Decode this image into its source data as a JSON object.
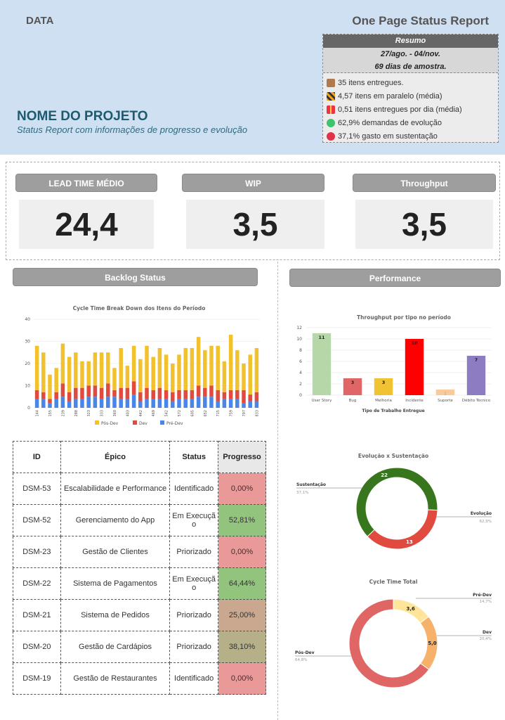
{
  "header": {
    "data_label": "DATA",
    "report_title": "One Page Status Report",
    "project_name": "NOME DO PROJETO",
    "project_subtitle": "Status Report com informações de progresso e evolução"
  },
  "resumo": {
    "title": "Resumo",
    "period": "27/ago. - 04/nov.",
    "sample": "69 dias de amostra.",
    "items": [
      {
        "icon": "package-icon",
        "text": "35 itens entregues."
      },
      {
        "icon": "barrier-icon",
        "text": "4,57 itens em paralelo (média)"
      },
      {
        "icon": "gift-icon",
        "text": "0,51 itens entregues por dia (média)"
      },
      {
        "icon": "green-circle-icon",
        "text": "62,9% demandas de evolução"
      },
      {
        "icon": "red-circle-icon",
        "text": "37,1% gasto em sustentação"
      }
    ]
  },
  "kpis": [
    {
      "label": "LEAD TIME MÉDIO",
      "value": "24,4"
    },
    {
      "label": "WIP",
      "value": "3,5"
    },
    {
      "label": "Throughput",
      "value": "3,5"
    }
  ],
  "sections": {
    "backlog": "Backlog Status",
    "performance": "Performance"
  },
  "colors": {
    "pos_dev": "#f2c12e",
    "dev": "#e04a3f",
    "pre_dev": "#4a86e8",
    "evolucao": "#38761d",
    "sustentacao": "#e04a3f",
    "prog_red": "#ea9999",
    "prog_green": "#93c47d",
    "prog_tan": "#c9a88f",
    "prog_olive": "#b5b087"
  },
  "chart_data": [
    {
      "type": "bar",
      "stacked": true,
      "title": "Cycle Time Break Down dos Itens do Período",
      "categories": [
        "144",
        "",
        "155",
        "",
        "239",
        "",
        "288",
        "",
        "323",
        "",
        "333",
        "",
        "360",
        "",
        "403",
        "",
        "442",
        "",
        "469",
        "",
        "542",
        "",
        "572",
        "",
        "605",
        "",
        "652",
        "",
        "715",
        "",
        "759",
        "",
        "797",
        "",
        "833"
      ],
      "series": [
        {
          "name": "Pós-Dev",
          "values": [
            20,
            18,
            11,
            11,
            18,
            16,
            16,
            12,
            11,
            15,
            16,
            14,
            10,
            18,
            10,
            16,
            15,
            19,
            15,
            18,
            16,
            13,
            16,
            19,
            19,
            22,
            17,
            18,
            20,
            14,
            25,
            18,
            12,
            18,
            20
          ]
        },
        {
          "name": "Dev",
          "values": [
            4,
            3,
            2,
            3,
            6,
            4,
            5,
            5,
            5,
            5,
            5,
            6,
            3,
            5,
            5,
            6,
            4,
            5,
            4,
            5,
            4,
            4,
            4,
            4,
            4,
            5,
            4,
            5,
            5,
            3,
            4,
            4,
            6,
            3,
            4
          ]
        },
        {
          "name": "Pré-Dev",
          "values": [
            4,
            4,
            2,
            4,
            5,
            3,
            4,
            4,
            5,
            5,
            4,
            5,
            5,
            4,
            4,
            6,
            3,
            4,
            4,
            4,
            4,
            3,
            4,
            4,
            4,
            5,
            5,
            5,
            3,
            4,
            4,
            4,
            2,
            3,
            3
          ]
        }
      ],
      "ylim": [
        0,
        40
      ],
      "yticks": [
        0,
        10,
        20,
        30,
        40
      ],
      "legend": "bottom"
    },
    {
      "type": "bar",
      "title": "Throughput por tipo no período",
      "xlabel": "Tipo de Trabalho Entregue",
      "categories": [
        "User Story",
        "Bug",
        "Melhoria",
        "Incidente",
        "Suporte",
        "Débito Técnico"
      ],
      "values": [
        11,
        3,
        3,
        10,
        1,
        7
      ],
      "colors": [
        "#b6d7a8",
        "#e06666",
        "#f1c232",
        "#ff0000",
        "#f9cb9c",
        "#8e7cc3"
      ],
      "ylim": [
        0,
        12
      ],
      "yticks": [
        0,
        2,
        4,
        6,
        8,
        10,
        12
      ]
    },
    {
      "type": "pie",
      "title": "Evolução x Sustentação",
      "slices": [
        {
          "label": "Evolução",
          "value": 22,
          "pct": "62,9%",
          "color": "#38761d"
        },
        {
          "label": "Sustentação",
          "value": 13,
          "pct": "37,1%",
          "color": "#e04a3f"
        }
      ]
    },
    {
      "type": "pie",
      "title": "Cycle Time Total",
      "slices": [
        {
          "label": "Pré-Dev",
          "value": 3.6,
          "display": "3,6",
          "pct": "14,7%",
          "color": "#ffe599"
        },
        {
          "label": "Dev",
          "value": 5.0,
          "display": "5,0",
          "pct": "20,4%",
          "color": "#f6b26b"
        },
        {
          "label": "Pós-Dev",
          "value": 15.9,
          "display": "",
          "pct": "64,8%",
          "color": "#e06666"
        }
      ]
    }
  ],
  "table": {
    "headers": [
      "ID",
      "Épico",
      "Status",
      "Progresso"
    ],
    "rows": [
      {
        "id": "DSM-53",
        "epico": "Escalabilidade e Performance",
        "status": "Identificado",
        "progresso": "0,00%",
        "color": "#ea9999"
      },
      {
        "id": "DSM-52",
        "epico": "Gerenciamento do App",
        "status": "Em Execução",
        "progresso": "52,81%",
        "color": "#93c47d"
      },
      {
        "id": "DSM-23",
        "epico": "Gestão de Clientes",
        "status": "Priorizado",
        "progresso": "0,00%",
        "color": "#ea9999"
      },
      {
        "id": "DSM-22",
        "epico": "Sistema de Pagamentos",
        "status": "Em Execução",
        "progresso": "64,44%",
        "color": "#93c47d"
      },
      {
        "id": "DSM-21",
        "epico": "Sistema de Pedidos",
        "status": "Priorizado",
        "progresso": "25,00%",
        "color": "#c9a88f"
      },
      {
        "id": "DSM-20",
        "epico": "Gestão de Cardápios",
        "status": "Priorizado",
        "progresso": "38,10%",
        "color": "#b5b087"
      },
      {
        "id": "DSM-19",
        "epico": "Gestão de Restaurantes",
        "status": "Identificado",
        "progresso": "0,00%",
        "color": "#ea9999"
      }
    ]
  }
}
